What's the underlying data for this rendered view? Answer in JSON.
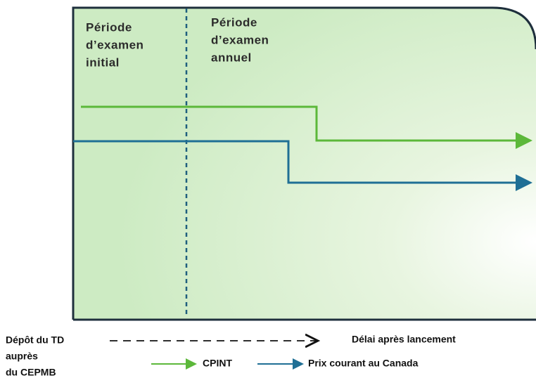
{
  "periods": [
    {
      "lines": [
        "Période",
        "d’examen",
        "initial"
      ]
    },
    {
      "lines": [
        "Période",
        "d’examen",
        "annuel"
      ]
    }
  ],
  "legend": {
    "origin": [
      "Dépôt du TD",
      "auprès",
      "du CEPMB"
    ],
    "axis": "Délai après lancement",
    "series": [
      "CPINT",
      "Prix courant au Canada"
    ]
  }
}
